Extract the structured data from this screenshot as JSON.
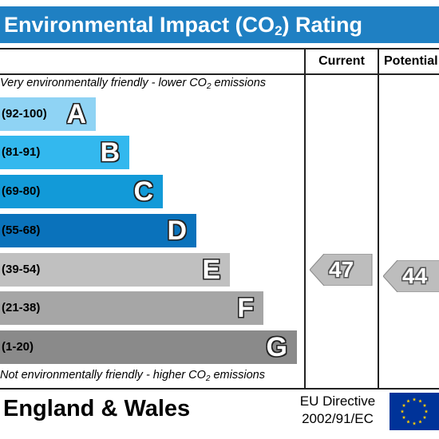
{
  "header": {
    "title_prefix": "Environmental Impact (CO",
    "title_sub": "2",
    "title_suffix": ") Rating"
  },
  "columns": {
    "current": "Current",
    "potential": "Potential"
  },
  "captions": {
    "top_prefix": "Very environmentally friendly - lower CO",
    "top_sub": "2",
    "top_suffix": " emissions",
    "bottom_prefix": "Not environmentally friendly - higher CO",
    "bottom_sub": "2",
    "bottom_suffix": " emissions"
  },
  "bands": [
    {
      "range": "(92-100)",
      "letter": "A",
      "color": "#8fd3f4"
    },
    {
      "range": "(81-91)",
      "letter": "B",
      "color": "#33b8ee"
    },
    {
      "range": "(69-80)",
      "letter": "C",
      "color": "#129ad8"
    },
    {
      "range": "(55-68)",
      "letter": "D",
      "color": "#0a72bb"
    },
    {
      "range": "(39-54)",
      "letter": "E",
      "color": "#c0c0c0"
    },
    {
      "range": "(21-38)",
      "letter": "F",
      "color": "#a6a6a6"
    },
    {
      "range": "(1-20)",
      "letter": "G",
      "color": "#8a8a8a"
    }
  ],
  "ratings": {
    "current": {
      "value": "47",
      "band": "E",
      "color": "#bdbdbd"
    },
    "potential": {
      "value": "44",
      "band": "E",
      "color": "#bdbdbd"
    }
  },
  "footer": {
    "country": "England & Wales",
    "directive_line1": "EU Directive",
    "directive_line2": "2002/91/EC",
    "flag_colors": {
      "background": "#003399",
      "stars": "#ffcc00"
    }
  }
}
